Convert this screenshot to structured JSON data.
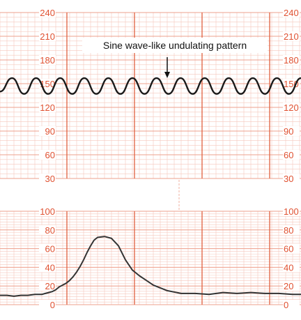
{
  "chart_data": [
    {
      "type": "line",
      "title": "",
      "xlabel": "",
      "ylabel": "",
      "ylim": [
        30,
        240
      ],
      "y_ticks": [
        "240",
        "210",
        "180",
        "150",
        "120",
        "90",
        "60",
        "30"
      ],
      "grid": true,
      "annotation": "Sine wave-like undulating pattern",
      "series": [
        {
          "x": [
            0,
            1,
            2,
            3,
            4,
            5,
            6,
            7,
            8,
            9,
            10,
            11,
            12,
            13,
            14,
            15,
            16,
            17,
            18,
            19,
            20,
            21,
            22,
            23,
            24,
            25
          ],
          "values": [
            140,
            157,
            137,
            157,
            137,
            157,
            137,
            157,
            137,
            157,
            137,
            157,
            137,
            157,
            137,
            157,
            137,
            157,
            137,
            157,
            137,
            157,
            137,
            157,
            137,
            157
          ]
        }
      ]
    },
    {
      "type": "line",
      "title": "",
      "xlabel": "",
      "ylabel": "",
      "ylim": [
        0,
        100
      ],
      "y_ticks": [
        "100",
        "80",
        "60",
        "40",
        "20",
        "0"
      ],
      "grid": true,
      "series": [
        {
          "x": [
            0,
            10,
            20,
            30,
            40,
            50,
            60,
            65,
            70,
            75,
            80,
            85,
            90,
            95,
            100,
            105,
            110,
            115,
            120,
            125,
            130,
            135,
            140,
            150,
            160,
            170,
            180,
            190,
            200,
            210,
            220,
            240,
            260,
            280,
            300,
            320,
            340,
            360,
            380,
            400,
            420,
            432
          ],
          "values": [
            10,
            10,
            9,
            10,
            10,
            11,
            11,
            12,
            13,
            14,
            16,
            19,
            21,
            23,
            26,
            30,
            35,
            41,
            48,
            56,
            63,
            69,
            72,
            73,
            71,
            63,
            48,
            37,
            31,
            26,
            21,
            15,
            12,
            12,
            11,
            13,
            12,
            13,
            12,
            12,
            11,
            11
          ]
        }
      ]
    }
  ]
}
